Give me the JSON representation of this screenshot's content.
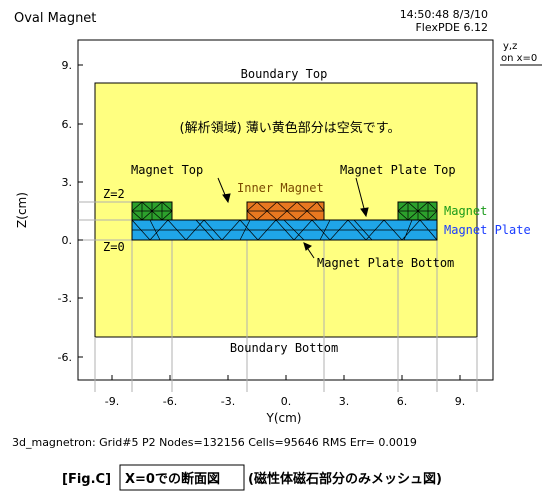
{
  "header": {
    "title": "Oval Magnet",
    "timestamp": "14:50:48 8/3/10",
    "software": "FlexPDE 6.12"
  },
  "view_label": {
    "line1": "y,z",
    "line2": "on x=0"
  },
  "axes": {
    "xlabel": "Y(cm)",
    "ylabel": "Z(cm)",
    "xticks": [
      "-9.",
      "-6.",
      "-3.",
      "0.",
      "3.",
      "6.",
      "9."
    ],
    "yticks": [
      "9.",
      "6.",
      "3.",
      "0.",
      "-3.",
      "-6."
    ]
  },
  "labels": {
    "boundary_top": "Boundary Top",
    "boundary_bottom": "Boundary Bottom",
    "analysis_region": "(解析領域) 薄い黄色部分は空気です。",
    "magnet_top": "Magnet Top",
    "inner_magnet": "Inner Magnet",
    "magnet_plate_top": "Magnet Plate Top",
    "magnet_plate_bottom": "Magnet Plate Bottom",
    "z2": "Z=2",
    "z0": "Z=0",
    "legend_magnet": "Magnet",
    "legend_magnet_plate": "Magnet Plate"
  },
  "footer": {
    "stats": "3d_magnetron:  Grid#5  P2  Nodes=132156 Cells=95646 RMS Err= 0.0019",
    "caption_prefix": "[Fig.C]",
    "caption_boxed": "X=0での断面図",
    "caption_suffix": "(磁性体磁石部分のみメッシュ図)"
  },
  "colors": {
    "air": "#ffff80",
    "magnet": "#2ca02c",
    "inner_magnet": "#e87820",
    "magnet_plate": "#1fa5e8",
    "legend_magnet": "#1a9a1a",
    "legend_plate": "#1a3cff"
  }
}
